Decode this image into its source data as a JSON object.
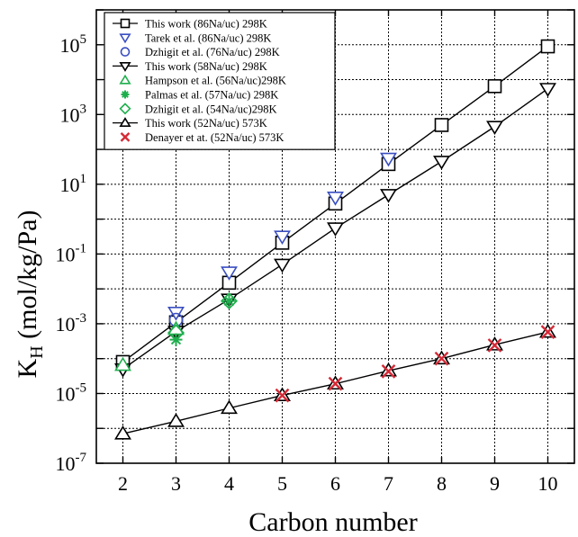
{
  "chart_data": {
    "type": "scatter",
    "xlabel": "Carbon number",
    "ylabel": "K",
    "ylabel_sub": "H",
    "ylabel_unit": " (mol/kg/Pa)",
    "xlim": [
      1.5,
      10.5
    ],
    "ylim": [
      1e-07,
      1000000.0
    ],
    "yscale": "log",
    "grid": true,
    "legend_position": "top-left",
    "x_ticks": [
      2,
      3,
      4,
      5,
      6,
      7,
      8,
      9,
      10
    ],
    "y_ticks": [
      {
        "value": 1e-07,
        "base": "10",
        "exp": "-7"
      },
      {
        "value": 1e-05,
        "base": "10",
        "exp": "-5"
      },
      {
        "value": 0.001,
        "base": "10",
        "exp": "-3"
      },
      {
        "value": 0.1,
        "base": "10",
        "exp": "-1"
      },
      {
        "value": 10,
        "base": "10",
        "exp": "1"
      },
      {
        "value": 1000,
        "base": "10",
        "exp": "3"
      },
      {
        "value": 100000,
        "base": "10",
        "exp": "5"
      }
    ],
    "series": [
      {
        "name": "This work (86Na/uc) 298K",
        "marker": "square",
        "color": "#000000",
        "line": true,
        "x": [
          2,
          3,
          4,
          5,
          6,
          7,
          8,
          9,
          10
        ],
        "y": [
          8e-05,
          0.0011,
          0.015,
          0.21,
          2.8,
          38,
          500,
          6500,
          90000
        ]
      },
      {
        "name": "Tarek et al. (86Na/uc) 298K",
        "marker": "triangle-down",
        "color": "#3a4fc1",
        "line": false,
        "x": [
          3,
          4,
          5,
          6,
          7
        ],
        "y": [
          0.0021,
          0.03,
          0.32,
          4.2,
          55
        ]
      },
      {
        "name": "Dzhigit et al. (76Na/uc) 298K",
        "marker": "circle",
        "color": "#3a4fc1",
        "line": false,
        "x": [
          3
        ],
        "y": [
          0.0013
        ]
      },
      {
        "name": "This work (58Na/uc) 298K",
        "marker": "triangle-down",
        "color": "#000000",
        "line": true,
        "x": [
          2,
          3,
          4,
          5,
          6,
          7,
          8,
          9,
          10
        ],
        "y": [
          5e-05,
          0.0006,
          0.005,
          0.05,
          0.55,
          5,
          45,
          450,
          5500
        ]
      },
      {
        "name": "Hampson et al. (56Na/uc)298K",
        "marker": "triangle-up",
        "color": "#1fae4d",
        "line": false,
        "x": [
          2,
          3
        ],
        "y": [
          6.5e-05,
          0.0007
        ]
      },
      {
        "name": "Palmas et al. (57Na/uc) 298K",
        "marker": "asterisk",
        "color": "#1fae4d",
        "line": false,
        "x": [
          3,
          4
        ],
        "y": [
          0.00035,
          0.0045
        ]
      },
      {
        "name": "Dzhigit et al. (54Na/uc)298K",
        "marker": "diamond",
        "color": "#1fae4d",
        "line": false,
        "x": [
          3,
          4
        ],
        "y": [
          0.00055,
          0.0045
        ]
      },
      {
        "name": "This work (52Na/uc) 573K",
        "marker": "triangle-up",
        "color": "#000000",
        "line": true,
        "x": [
          2,
          3,
          4,
          5,
          6,
          7,
          8,
          9,
          10
        ],
        "y": [
          7e-07,
          1.6e-06,
          3.8e-06,
          8.8e-06,
          1.9e-05,
          4.5e-05,
          0.0001,
          0.00025,
          0.00058
        ]
      },
      {
        "name": "Denayer et at. (52Na/uc) 573K",
        "marker": "x",
        "color": "#d42a36",
        "line": false,
        "x": [
          5,
          6,
          7,
          8,
          9,
          10
        ],
        "y": [
          8.8e-06,
          1.9e-05,
          4.3e-05,
          0.0001,
          0.00024,
          0.00058
        ]
      }
    ]
  }
}
